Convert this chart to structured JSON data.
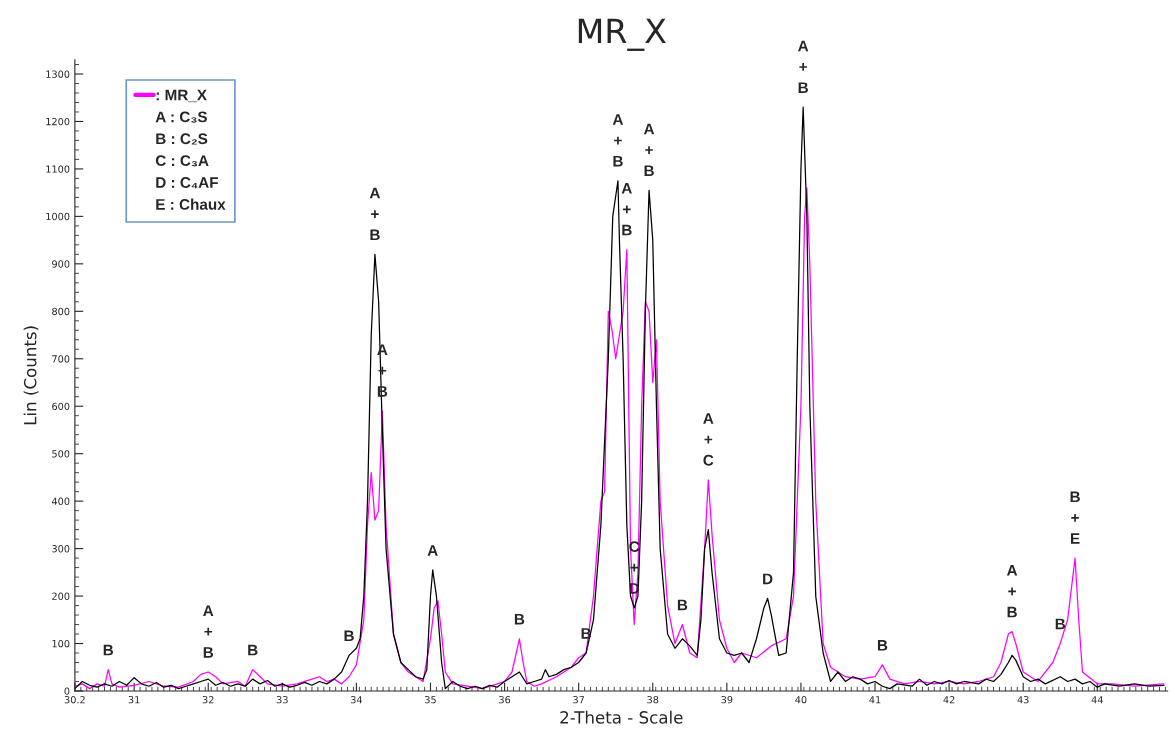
{
  "chart_data": {
    "type": "line",
    "title": "MR_X",
    "xlabel": "2-Theta - Scale",
    "ylabel": "Lin (Counts)",
    "xlim": [
      30.2,
      44.95
    ],
    "ylim": [
      0,
      1330
    ],
    "xticks": [
      30.2,
      31,
      32,
      33,
      34,
      35,
      36,
      37,
      38,
      39,
      40,
      41,
      42,
      43,
      44
    ],
    "yticks": [
      0,
      100,
      200,
      300,
      400,
      500,
      600,
      700,
      800,
      900,
      1000,
      1100,
      1200,
      1300
    ],
    "grid": false,
    "legend": "top left",
    "marker": "none",
    "line_style": "solid",
    "series": [
      {
        "name": ": MR_X",
        "color": "#ff00ff",
        "x": [
          30.2,
          30.3,
          30.4,
          30.5,
          30.6,
          30.65,
          30.7,
          30.8,
          31.0,
          31.2,
          31.4,
          31.6,
          31.8,
          31.9,
          32.0,
          32.1,
          32.2,
          32.4,
          32.5,
          32.6,
          32.7,
          32.8,
          33.0,
          33.2,
          33.4,
          33.5,
          33.6,
          33.7,
          33.8,
          33.9,
          34.0,
          34.1,
          34.15,
          34.2,
          34.25,
          34.3,
          34.35,
          34.4,
          34.5,
          34.6,
          34.7,
          34.8,
          34.9,
          35.0,
          35.05,
          35.1,
          35.15,
          35.2,
          35.3,
          35.5,
          35.7,
          35.9,
          36.0,
          36.1,
          36.2,
          36.25,
          36.3,
          36.4,
          36.5,
          36.7,
          36.9,
          37.0,
          37.1,
          37.2,
          37.3,
          37.35,
          37.4,
          37.45,
          37.5,
          37.55,
          37.6,
          37.65,
          37.7,
          37.75,
          37.8,
          37.85,
          37.9,
          37.95,
          38.0,
          38.05,
          38.1,
          38.2,
          38.3,
          38.4,
          38.5,
          38.6,
          38.7,
          38.75,
          38.8,
          38.9,
          39.0,
          39.1,
          39.2,
          39.4,
          39.6,
          39.8,
          39.9,
          40.0,
          40.05,
          40.08,
          40.12,
          40.2,
          40.3,
          40.4,
          40.6,
          40.8,
          41.0,
          41.1,
          41.2,
          41.4,
          41.6,
          41.8,
          42.0,
          42.2,
          42.4,
          42.6,
          42.7,
          42.8,
          42.85,
          42.9,
          43.0,
          43.2,
          43.4,
          43.5,
          43.6,
          43.7,
          43.75,
          43.8,
          44.0,
          44.2,
          44.5,
          44.9
        ],
        "values": [
          10,
          15,
          5,
          15,
          10,
          45,
          15,
          8,
          12,
          20,
          10,
          8,
          20,
          35,
          40,
          30,
          15,
          20,
          10,
          45,
          30,
          15,
          10,
          15,
          25,
          30,
          20,
          25,
          15,
          30,
          55,
          150,
          350,
          460,
          360,
          380,
          590,
          350,
          120,
          60,
          40,
          30,
          20,
          110,
          175,
          190,
          120,
          40,
          15,
          10,
          5,
          15,
          20,
          40,
          110,
          60,
          20,
          10,
          15,
          30,
          50,
          70,
          80,
          200,
          400,
          420,
          800,
          760,
          700,
          750,
          800,
          930,
          300,
          140,
          250,
          600,
          820,
          800,
          650,
          740,
          400,
          180,
          100,
          140,
          80,
          70,
          300,
          445,
          330,
          150,
          90,
          60,
          80,
          70,
          95,
          110,
          200,
          600,
          1000,
          1060,
          900,
          400,
          100,
          50,
          30,
          25,
          30,
          55,
          25,
          15,
          20,
          15,
          20,
          15,
          20,
          30,
          60,
          120,
          125,
          100,
          40,
          20,
          60,
          100,
          150,
          280,
          150,
          40,
          15,
          15,
          10,
          15
        ]
      },
      {
        "color": "#000000",
        "x": [
          30.2,
          30.3,
          30.4,
          30.5,
          30.6,
          30.7,
          30.8,
          30.9,
          31.0,
          31.1,
          31.2,
          31.3,
          31.4,
          31.5,
          31.6,
          31.7,
          31.8,
          31.9,
          32.0,
          32.1,
          32.2,
          32.3,
          32.4,
          32.5,
          32.6,
          32.7,
          32.8,
          32.9,
          33.0,
          33.1,
          33.2,
          33.3,
          33.4,
          33.5,
          33.6,
          33.7,
          33.8,
          33.9,
          34.0,
          34.05,
          34.1,
          34.15,
          34.2,
          34.25,
          34.3,
          34.35,
          34.4,
          34.5,
          34.6,
          34.7,
          34.8,
          34.9,
          34.95,
          35.0,
          35.03,
          35.08,
          35.15,
          35.2,
          35.3,
          35.4,
          35.5,
          35.6,
          35.7,
          35.8,
          35.9,
          36.0,
          36.1,
          36.2,
          36.3,
          36.4,
          36.5,
          36.55,
          36.6,
          36.7,
          36.8,
          36.9,
          37.0,
          37.1,
          37.2,
          37.3,
          37.4,
          37.46,
          37.53,
          37.55,
          37.6,
          37.65,
          37.7,
          37.75,
          37.8,
          37.85,
          37.9,
          37.95,
          38.0,
          38.05,
          38.1,
          38.2,
          38.3,
          38.4,
          38.5,
          38.6,
          38.65,
          38.7,
          38.75,
          38.8,
          38.9,
          39.0,
          39.1,
          39.2,
          39.3,
          39.4,
          39.5,
          39.55,
          39.6,
          39.7,
          39.8,
          39.9,
          39.95,
          40.0,
          40.03,
          40.08,
          40.12,
          40.2,
          40.3,
          40.4,
          40.5,
          40.6,
          40.7,
          40.8,
          40.9,
          41.0,
          41.1,
          41.2,
          41.3,
          41.5,
          41.6,
          41.7,
          41.8,
          41.9,
          42.0,
          42.1,
          42.2,
          42.4,
          42.5,
          42.6,
          42.7,
          42.8,
          42.85,
          42.9,
          43.0,
          43.1,
          43.2,
          43.3,
          43.5,
          43.6,
          43.7,
          43.8,
          43.9,
          44.0,
          44.1,
          44.3,
          44.5,
          44.7,
          44.9
        ],
        "values": [
          5,
          20,
          12,
          8,
          15,
          10,
          20,
          12,
          28,
          15,
          10,
          18,
          8,
          12,
          5,
          10,
          15,
          20,
          25,
          12,
          18,
          10,
          15,
          10,
          25,
          15,
          22,
          10,
          15,
          8,
          12,
          18,
          12,
          20,
          15,
          25,
          40,
          75,
          90,
          110,
          200,
          400,
          750,
          920,
          820,
          550,
          300,
          120,
          60,
          45,
          30,
          25,
          45,
          200,
          255,
          200,
          60,
          5,
          20,
          10,
          5,
          10,
          5,
          12,
          8,
          20,
          30,
          40,
          15,
          20,
          25,
          45,
          30,
          35,
          45,
          50,
          60,
          80,
          150,
          350,
          700,
          1000,
          1075,
          950,
          700,
          350,
          200,
          175,
          200,
          400,
          800,
          1055,
          950,
          600,
          300,
          120,
          90,
          110,
          95,
          75,
          150,
          300,
          340,
          250,
          110,
          80,
          75,
          80,
          60,
          110,
          175,
          195,
          160,
          75,
          80,
          250,
          700,
          1100,
          1230,
          1000,
          600,
          200,
          80,
          20,
          40,
          20,
          30,
          25,
          15,
          20,
          10,
          5,
          15,
          10,
          25,
          12,
          20,
          15,
          22,
          15,
          20,
          15,
          25,
          20,
          35,
          60,
          75,
          65,
          30,
          20,
          25,
          15,
          30,
          20,
          25,
          15,
          20,
          8,
          15,
          10,
          15,
          10,
          12
        ]
      }
    ],
    "annotations": [
      "A : C₃S",
      "B : C₂S",
      "C : C₃A",
      "D : C₄AF",
      "E : Chaux",
      {
        "text": "B",
        "x": 30.65,
        "y": 45
      },
      {
        "text": "A\n+\nB",
        "x": 32.0,
        "y": 40
      },
      {
        "text": "B",
        "x": 32.6,
        "y": 45
      },
      {
        "text": "B",
        "x": 33.9,
        "y": 75
      },
      {
        "text": "A\n+\nB",
        "x": 34.25,
        "y": 920
      },
      {
        "text": "A\n+\nB",
        "x": 34.35,
        "y": 590
      },
      {
        "text": "A",
        "x": 35.03,
        "y": 255
      },
      {
        "text": "B",
        "x": 36.2,
        "y": 110
      },
      {
        "text": "B",
        "x": 37.1,
        "y": 80
      },
      {
        "text": "A\n+\nB",
        "x": 37.53,
        "y": 1075
      },
      {
        "text": "A\n+\nB",
        "x": 37.65,
        "y": 930
      },
      {
        "text": "C\n+\nD",
        "x": 37.75,
        "y": 175
      },
      {
        "text": "A\n+\nB",
        "x": 37.95,
        "y": 1055
      },
      {
        "text": "B",
        "x": 38.4,
        "y": 140
      },
      {
        "text": "A\n+\nC",
        "x": 38.75,
        "y": 445
      },
      {
        "text": "D",
        "x": 39.55,
        "y": 195
      },
      {
        "text": "A\n+\nB",
        "x": 40.03,
        "y": 1230
      },
      {
        "text": "B",
        "x": 41.1,
        "y": 55
      },
      {
        "text": "A\n+\nB",
        "x": 42.85,
        "y": 125
      },
      {
        "text": "B",
        "x": 43.5,
        "y": 100
      },
      {
        "text": "B\n+\nE",
        "x": 43.7,
        "y": 280
      }
    ]
  }
}
